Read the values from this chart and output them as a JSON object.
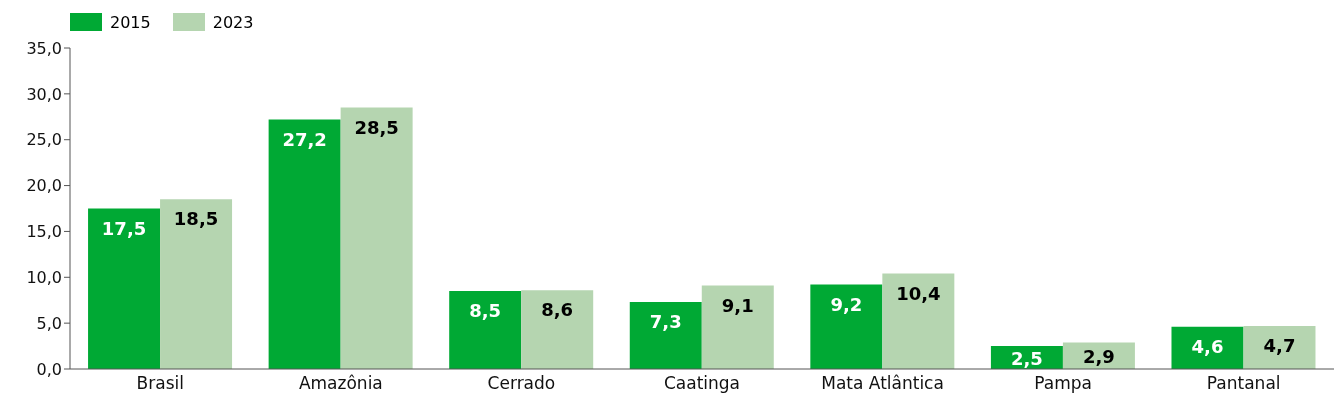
{
  "chart_data": {
    "type": "bar",
    "categories": [
      "Brasil",
      "Amazônia",
      "Cerrado",
      "Caatinga",
      "Mata Atlântica",
      "Pampa",
      "Pantanal"
    ],
    "series": [
      {
        "name": "2015",
        "color": "#00a934",
        "values": [
          17.5,
          27.2,
          8.5,
          7.3,
          9.2,
          2.5,
          4.6
        ],
        "value_labels": [
          "17,5",
          "27,2",
          "8,5",
          "7,3",
          "9,2",
          "2,5",
          "4,6"
        ]
      },
      {
        "name": "2023",
        "color": "#b5d5b0",
        "values": [
          18.5,
          28.5,
          8.6,
          9.1,
          10.4,
          2.9,
          4.7
        ],
        "value_labels": [
          "18,5",
          "28,5",
          "8,6",
          "9,1",
          "10,4",
          "2,9",
          "4,7"
        ]
      }
    ],
    "ylim": [
      0,
      35
    ],
    "yticks": [
      {
        "value": 0,
        "label": "0,0"
      },
      {
        "value": 5,
        "label": "5,0"
      },
      {
        "value": 10,
        "label": "10,0"
      },
      {
        "value": 15,
        "label": "15,0"
      },
      {
        "value": 20,
        "label": "20,0"
      },
      {
        "value": 25,
        "label": "25,0"
      },
      {
        "value": 30,
        "label": "30,0"
      },
      {
        "value": 35,
        "label": "35,0"
      }
    ],
    "grid": false,
    "legend": "top left"
  }
}
